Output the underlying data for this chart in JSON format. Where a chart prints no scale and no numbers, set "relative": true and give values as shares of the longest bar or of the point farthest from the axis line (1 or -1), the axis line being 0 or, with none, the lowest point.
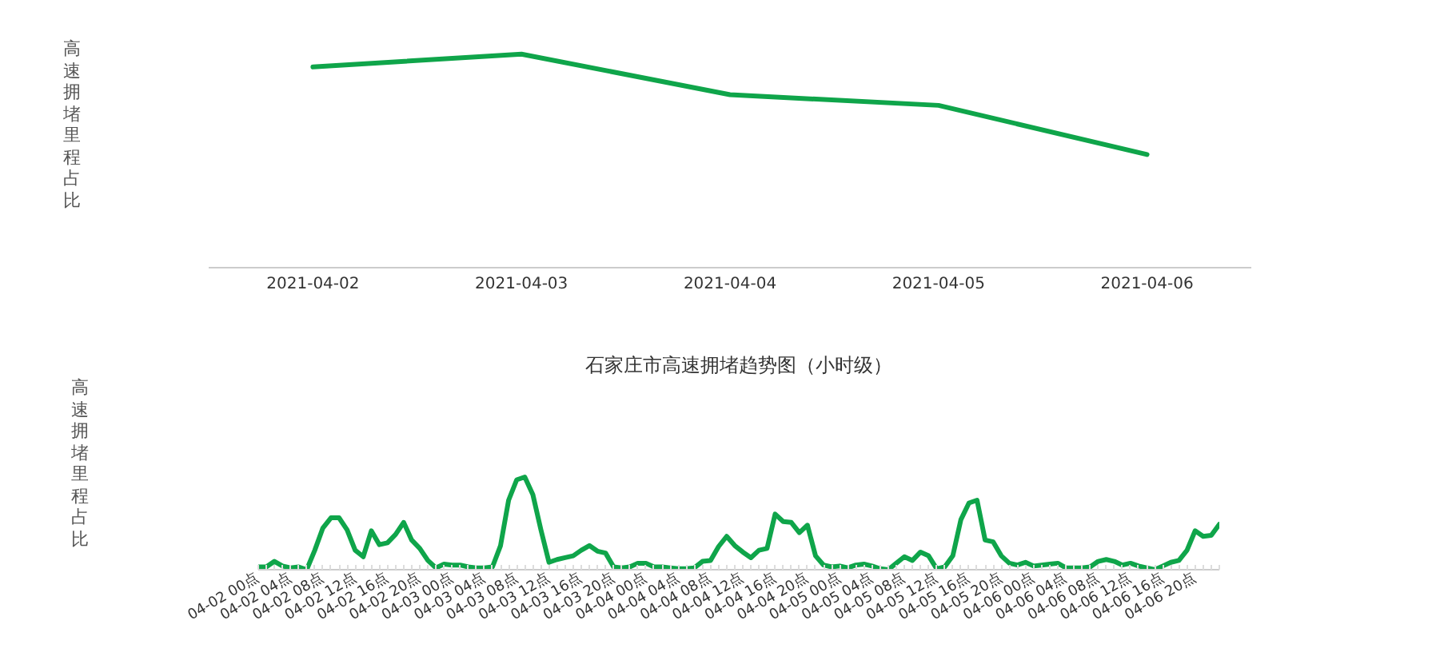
{
  "chart_data": [
    {
      "type": "line",
      "ylabel": "高速拥堵里程占比",
      "relative": true,
      "categories": [
        "2021-04-02",
        "2021-04-03",
        "2021-04-04",
        "2021-04-05",
        "2021-04-06"
      ],
      "series": [
        {
          "color": "#0fa54a",
          "values": [
            0.94,
            1,
            0.81,
            0.76,
            0.53
          ]
        }
      ]
    },
    {
      "type": "line",
      "title": "石家庄市高速拥堵趋势图（小时级）",
      "ylabel": "高速拥堵里程占比",
      "relative": true,
      "categories": [
        "04-02 00点",
        null,
        null,
        null,
        "04-02 04点",
        null,
        null,
        null,
        "04-02 08点",
        null,
        null,
        null,
        "04-02 12点",
        null,
        null,
        null,
        "04-02 16点",
        null,
        null,
        null,
        "04-02 20点",
        null,
        null,
        null,
        "04-03 00点",
        null,
        null,
        null,
        "04-03 04点",
        null,
        null,
        null,
        "04-03 08点",
        null,
        null,
        null,
        "04-03 12点",
        null,
        null,
        null,
        "04-03 16点",
        null,
        null,
        null,
        "04-03 20点",
        null,
        null,
        null,
        "04-04 00点",
        null,
        null,
        null,
        "04-04 04点",
        null,
        null,
        null,
        "04-04 08点",
        null,
        null,
        null,
        "04-04 12点",
        null,
        null,
        null,
        "04-04 16点",
        null,
        null,
        null,
        "04-04 20点",
        null,
        null,
        null,
        "04-05 00点",
        null,
        null,
        null,
        "04-05 04点",
        null,
        null,
        null,
        "04-05 08点",
        null,
        null,
        null,
        "04-05 12点",
        null,
        null,
        null,
        "04-05 16点",
        null,
        null,
        null,
        "04-05 20点",
        null,
        null,
        null,
        "04-06 00点",
        null,
        null,
        null,
        "04-06 04点",
        null,
        null,
        null,
        "04-06 08点",
        null,
        null,
        null,
        "04-06 12点",
        null,
        null,
        null,
        "04-06 16点",
        null,
        null,
        null,
        "04-06 20点",
        null,
        null,
        null
      ],
      "series": [
        {
          "color": "#0fa54a",
          "values": [
            0.03,
            0.03,
            0.09,
            0.04,
            0.02,
            0.03,
            0,
            0.21,
            0.45,
            0.56,
            0.56,
            0.43,
            0.21,
            0.14,
            0.42,
            0.27,
            0.29,
            0.38,
            0.51,
            0.32,
            0.23,
            0.1,
            0.02,
            0.06,
            0.05,
            0.05,
            0.03,
            0.02,
            0.02,
            0.03,
            0.26,
            0.75,
            0.97,
            1,
            0.81,
            0.43,
            0.08,
            0.11,
            0.13,
            0.15,
            0.21,
            0.26,
            0.2,
            0.18,
            0.03,
            0.02,
            0.03,
            0.07,
            0.07,
            0.03,
            0.03,
            0.02,
            0.01,
            0.01,
            0.02,
            0.09,
            0.1,
            0.25,
            0.36,
            0.26,
            0.19,
            0.13,
            0.21,
            0.23,
            0.6,
            0.52,
            0.51,
            0.4,
            0.48,
            0.15,
            0.05,
            0.03,
            0.04,
            0.02,
            0.05,
            0.06,
            0.04,
            0.01,
            0,
            0.07,
            0.14,
            0.1,
            0.19,
            0.15,
            0.01,
            0.03,
            0.15,
            0.54,
            0.72,
            0.75,
            0.32,
            0.3,
            0.15,
            0.07,
            0.05,
            0.08,
            0.04,
            0.05,
            0.06,
            0.07,
            0.02,
            0.02,
            0.02,
            0.03,
            0.09,
            0.11,
            0.09,
            0.05,
            0.07,
            0.04,
            0.02,
            0,
            0.04,
            0.08,
            0.1,
            0.21,
            0.42,
            0.36,
            0.37,
            0.49
          ]
        }
      ]
    }
  ]
}
